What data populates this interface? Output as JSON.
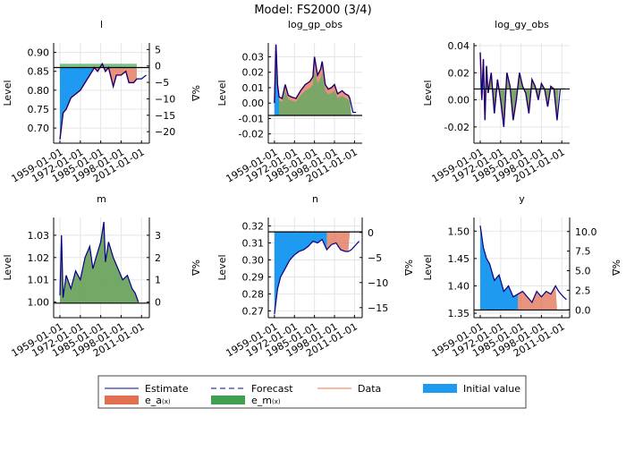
{
  "title": "Model: FS2000  (3/4)",
  "colors": {
    "estimate": "#00008b",
    "data": "#e8775a",
    "initial": "#1e9bf0",
    "e_a": "#e07050",
    "e_m": "#4caf60",
    "hline": "#000000"
  },
  "legend": {
    "placement": "bottom",
    "items": [
      {
        "label": "Estimate",
        "kind": "line",
        "color": "#3a3aa0"
      },
      {
        "label": "Forecast",
        "kind": "dash",
        "color": "#3a3aa0"
      },
      {
        "label": "Data",
        "kind": "line",
        "color": "#f0906a"
      },
      {
        "label": "Initial value",
        "kind": "box",
        "color": "#1e9bf0"
      },
      {
        "label": "e_a",
        "sub": "(x)",
        "kind": "box",
        "color": "#e07050"
      },
      {
        "label": "e_m",
        "sub": "(x)",
        "kind": "box",
        "color": "#3ea050"
      }
    ]
  },
  "chart_data": [
    {
      "type": "area",
      "title": "l",
      "ylabel": "Level",
      "y2label": "%Δ",
      "xlim": [
        1955,
        2016
      ],
      "xticks": [
        "1959-01-01",
        "1972-01-01",
        "1985-01-01",
        "1998-01-01",
        "2011-01-01"
      ],
      "ylim": [
        0.66,
        0.925
      ],
      "yticks": [
        "0.70",
        "0.75",
        "0.80",
        "0.85",
        "0.90"
      ],
      "y2ticks": [
        "5",
        "0",
        "-5",
        "-10",
        "-15",
        "-20"
      ],
      "y2lim": [
        -23.5,
        7
      ],
      "baseline": 0.86,
      "estimate": {
        "x": [
          1959,
          1961,
          1963,
          1966,
          1969,
          1972,
          1975,
          1978,
          1981,
          1983,
          1986,
          1988,
          1990,
          1993,
          1995,
          1998,
          2001,
          2003,
          2006,
          2008,
          2011,
          2014
        ],
        "y": [
          0.67,
          0.74,
          0.75,
          0.78,
          0.79,
          0.8,
          0.82,
          0.84,
          0.86,
          0.85,
          0.87,
          0.85,
          0.86,
          0.81,
          0.84,
          0.84,
          0.85,
          0.82,
          0.82,
          0.83,
          0.83,
          0.84
        ]
      },
      "e_a_until": 2008,
      "e_m_top": 0.87,
      "initial_until": 1982
    },
    {
      "type": "area",
      "title": "log_gp_obs",
      "ylabel": "Level",
      "xlim": [
        1955,
        2016
      ],
      "xticks": [
        "1959-01-01",
        "1972-01-01",
        "1985-01-01",
        "1998-01-01",
        "2011-01-01"
      ],
      "ylim": [
        -0.026,
        0.039
      ],
      "yticks": [
        "-0.02",
        "-0.01",
        "0.00",
        "0.01",
        "0.02",
        "0.03"
      ],
      "baseline": -0.008,
      "estimate": {
        "x": [
          1959,
          1960,
          1961,
          1962,
          1964,
          1966,
          1968,
          1970,
          1973,
          1976,
          1979,
          1982,
          1984,
          1985,
          1987,
          1989,
          1990,
          1992,
          1994,
          1996,
          1998,
          2000,
          2003,
          2005,
          2007,
          2008,
          2010,
          2012
        ],
        "y": [
          0.0,
          0.038,
          0.012,
          0.004,
          0.003,
          0.012,
          0.005,
          0.004,
          0.003,
          0.008,
          0.012,
          0.014,
          0.017,
          0.03,
          0.018,
          0.022,
          0.027,
          0.012,
          0.009,
          0.01,
          0.012,
          0.006,
          0.008,
          0.006,
          0.005,
          0.003,
          -0.006,
          -0.006
        ]
      },
      "e_a_until": 2009,
      "initial_until": 1962
    },
    {
      "type": "area",
      "title": "log_gy_obs",
      "ylabel": "Level",
      "xlim": [
        1955,
        2016
      ],
      "xticks": [
        "1959-01-01",
        "1972-01-01",
        "1985-01-01",
        "1998-01-01",
        "2011-01-01"
      ],
      "ylim": [
        -0.032,
        0.042
      ],
      "yticks": [
        "-0.02",
        "0.00",
        "0.02",
        "0.04"
      ],
      "baseline": 0.008,
      "estimate": {
        "x": [
          1959,
          1960,
          1961,
          1962,
          1963,
          1964,
          1966,
          1968,
          1970,
          1972,
          1974,
          1976,
          1978,
          1980,
          1982,
          1984,
          1986,
          1988,
          1990,
          1992,
          1994,
          1996,
          1998,
          2000,
          2002,
          2004,
          2006,
          2008,
          2010,
          2013
        ],
        "y": [
          0.035,
          0.0,
          0.03,
          -0.015,
          0.025,
          0.005,
          0.02,
          -0.01,
          0.015,
          0.0,
          -0.02,
          0.02,
          0.01,
          -0.015,
          0.0,
          0.02,
          0.01,
          0.005,
          -0.01,
          0.015,
          0.01,
          0.0,
          0.012,
          0.008,
          -0.005,
          0.01,
          0.008,
          -0.015,
          0.008,
          0.008
        ]
      },
      "e_a_until": 2009,
      "initial_until": 1961
    },
    {
      "type": "area",
      "title": "m",
      "ylabel": "Level",
      "y2label": "%Δ",
      "xlim": [
        1955,
        2016
      ],
      "xticks": [
        "1959-01-01",
        "1972-01-01",
        "1985-01-01",
        "1998-01-01",
        "2011-01-01"
      ],
      "ylim": [
        0.993,
        1.038
      ],
      "yticks": [
        "1.00",
        "1.01",
        "1.02",
        "1.03"
      ],
      "y2ticks": [
        "3",
        "2",
        "1",
        "0"
      ],
      "y2lim": [
        -0.7,
        3.8
      ],
      "baseline": 0.9995,
      "estimate": {
        "x": [
          1959,
          1960,
          1961,
          1963,
          1966,
          1969,
          1972,
          1975,
          1978,
          1980,
          1982,
          1985,
          1987,
          1988,
          1990,
          1993,
          1996,
          1999,
          2002,
          2005,
          2007,
          2009
        ],
        "y": [
          1.003,
          1.03,
          1.002,
          1.012,
          1.006,
          1.014,
          1.01,
          1.02,
          1.025,
          1.015,
          1.02,
          1.027,
          1.036,
          1.018,
          1.027,
          1.02,
          1.015,
          1.01,
          1.012,
          1.006,
          1.004,
          1.0
        ]
      },
      "e_a_until": 2009,
      "e_m_top": "estimate",
      "initial_until": 1959
    },
    {
      "type": "area",
      "title": "n",
      "ylabel": "Level",
      "y2label": "%Δ",
      "xlim": [
        1955,
        2016
      ],
      "xticks": [
        "1959-01-01",
        "1972-01-01",
        "1985-01-01",
        "1998-01-01",
        "2011-01-01"
      ],
      "ylim": [
        0.266,
        0.325
      ],
      "yticks": [
        "0.27",
        "0.28",
        "0.29",
        "0.30",
        "0.31",
        "0.32"
      ],
      "y2ticks": [
        "0",
        "-5",
        "-10",
        "-15"
      ],
      "y2lim": [
        -17,
        3
      ],
      "baseline": 0.3165,
      "estimate": {
        "x": [
          1959,
          1961,
          1963,
          1966,
          1969,
          1972,
          1975,
          1978,
          1981,
          1984,
          1987,
          1990,
          1993,
          1996,
          1999,
          2002,
          2005,
          2007,
          2009,
          2012,
          2014
        ],
        "y": [
          0.268,
          0.283,
          0.29,
          0.295,
          0.3,
          0.303,
          0.305,
          0.306,
          0.308,
          0.311,
          0.31,
          0.312,
          0.306,
          0.309,
          0.31,
          0.306,
          0.305,
          0.305,
          0.306,
          0.309,
          0.311
        ]
      },
      "e_a_until": 2008,
      "initial_until": 1995
    },
    {
      "type": "area",
      "title": "y",
      "ylabel": "Level",
      "y2label": "%Δ",
      "xlim": [
        1955,
        2016
      ],
      "xticks": [
        "1959-01-01",
        "1972-01-01",
        "1985-01-01",
        "1998-01-01",
        "2011-01-01"
      ],
      "ylim": [
        1.342,
        1.525
      ],
      "yticks": [
        "1.35",
        "1.40",
        "1.45",
        "1.50"
      ],
      "y2ticks": [
        "10.0",
        "7.5",
        "5.0",
        "2.5",
        "0.0"
      ],
      "y2lim": [
        -1,
        11.8
      ],
      "baseline": 1.356,
      "estimate": {
        "x": [
          1959,
          1961,
          1963,
          1965,
          1968,
          1971,
          1974,
          1977,
          1980,
          1983,
          1986,
          1989,
          1992,
          1995,
          1998,
          2001,
          2004,
          2007,
          2009,
          2012,
          2014
        ],
        "y": [
          1.51,
          1.47,
          1.45,
          1.44,
          1.41,
          1.42,
          1.39,
          1.4,
          1.38,
          1.385,
          1.39,
          1.38,
          1.37,
          1.39,
          1.38,
          1.39,
          1.385,
          1.4,
          1.39,
          1.38,
          1.375
        ]
      },
      "e_a_until": 2008,
      "initial_until": 1985
    }
  ]
}
